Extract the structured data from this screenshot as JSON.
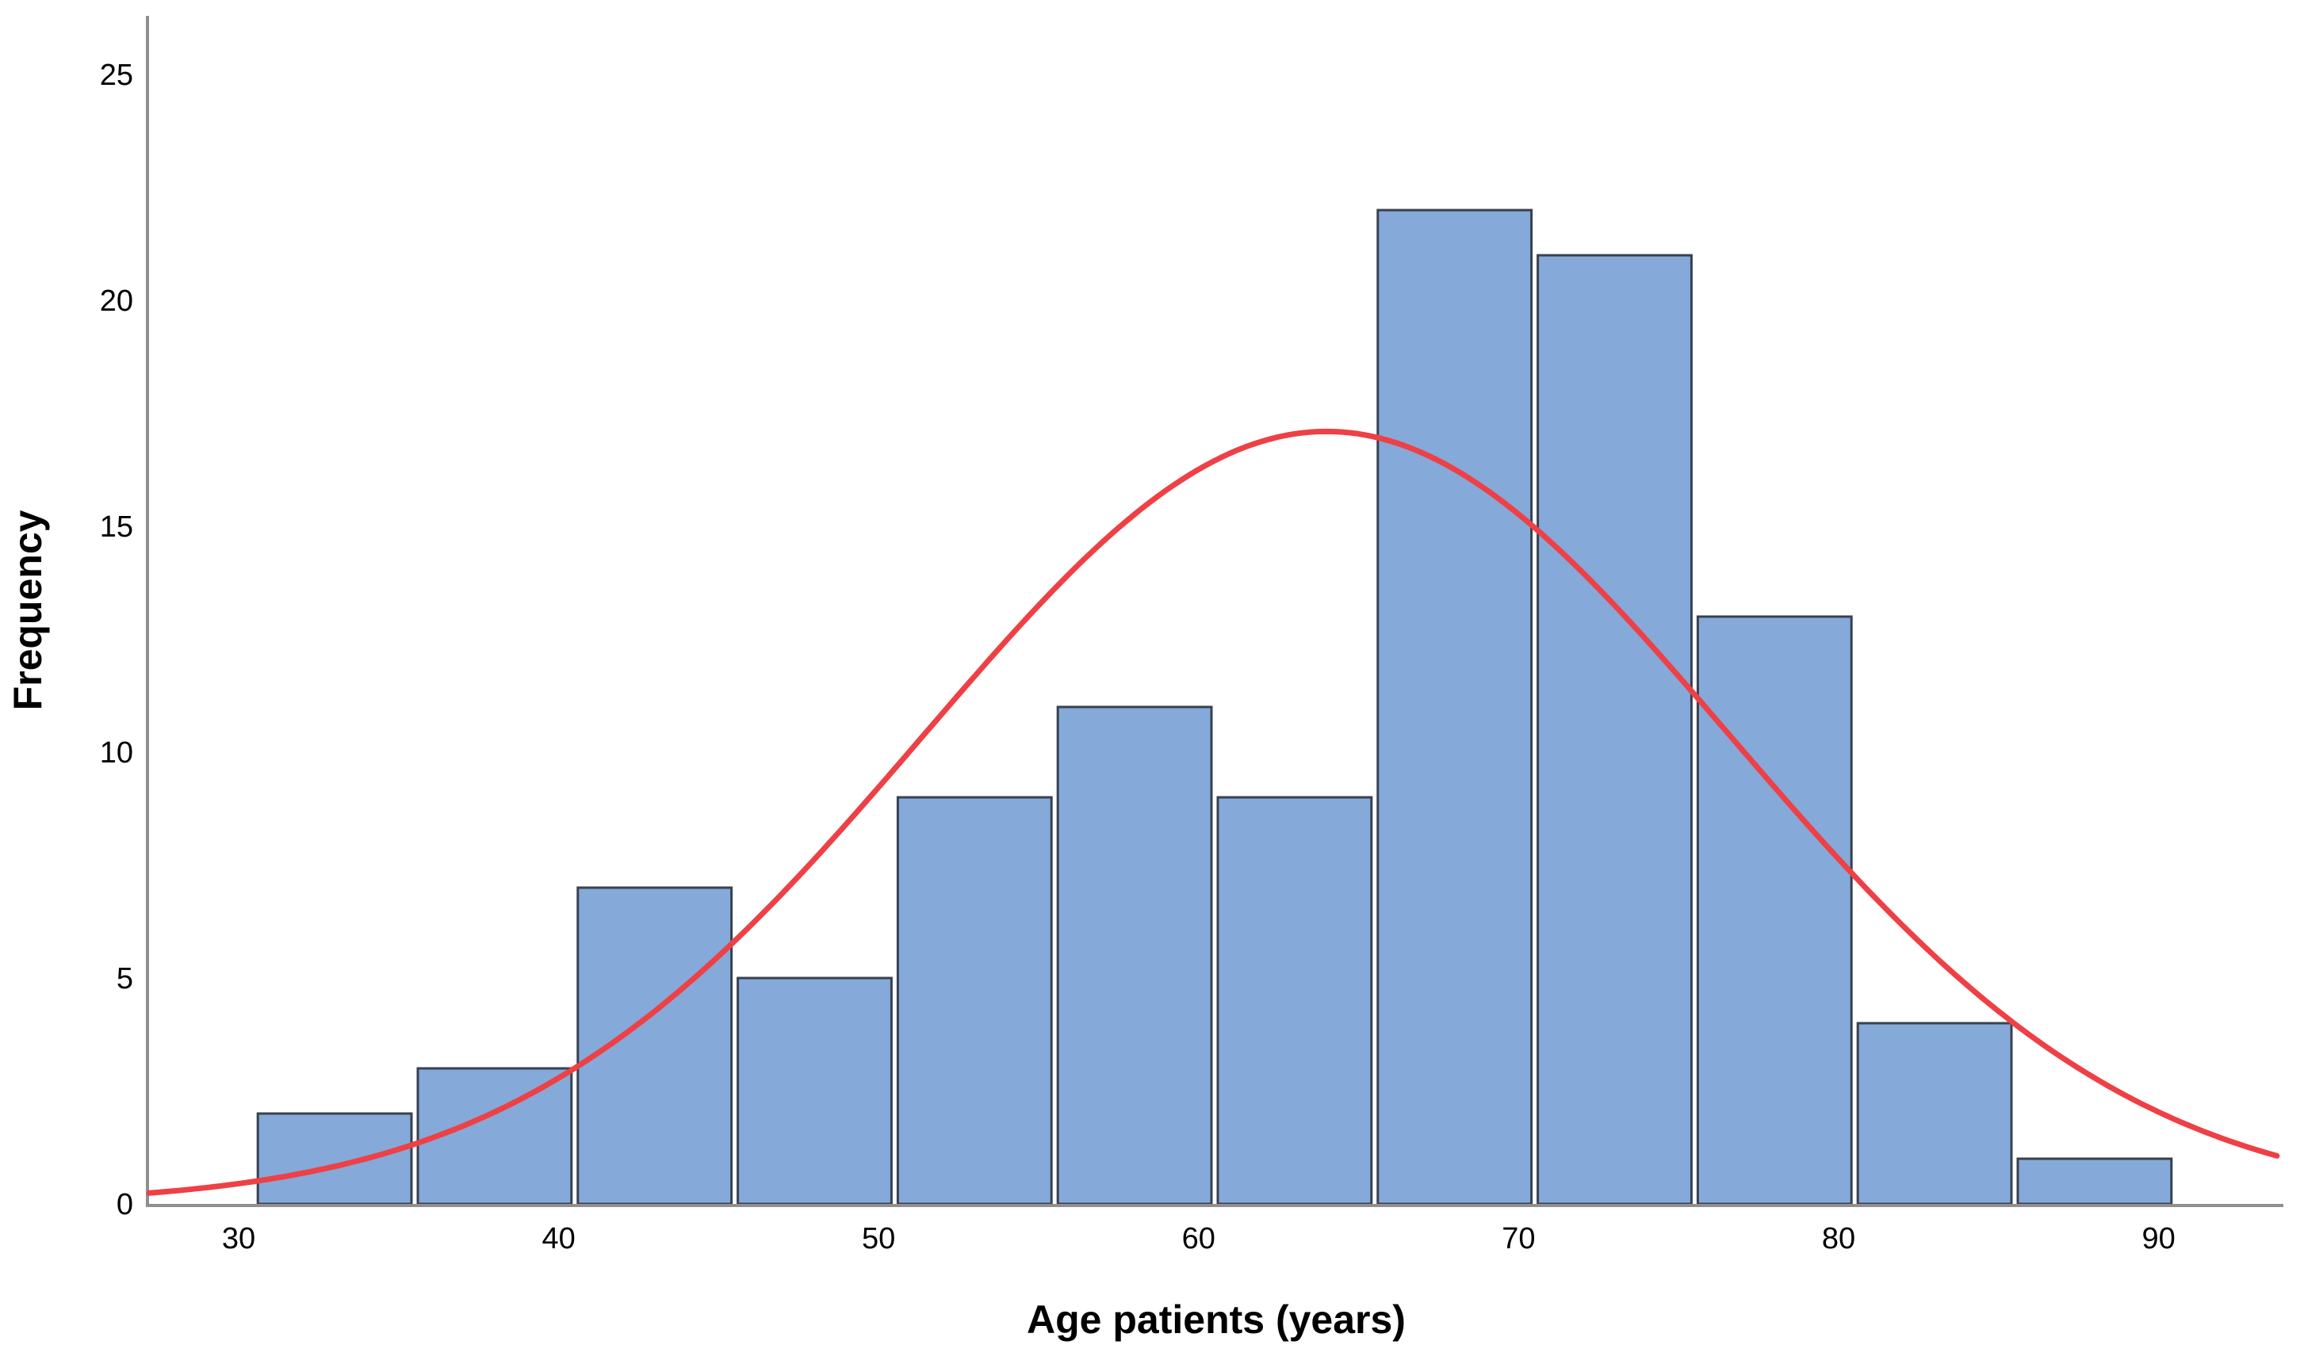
{
  "chart_data": {
    "type": "bar",
    "subtype": "histogram-with-normal-curve",
    "title": "",
    "xlabel": "Age patients (years)",
    "ylabel": "Frequency",
    "x_tick_labels": [
      "30",
      "40",
      "50",
      "60",
      "70",
      "80",
      "90"
    ],
    "x_tick_values": [
      30,
      40,
      50,
      60,
      70,
      80,
      90
    ],
    "y_tick_labels": [
      "0",
      "5",
      "10",
      "15",
      "20",
      "25"
    ],
    "y_tick_values": [
      0,
      5,
      10,
      15,
      20,
      25
    ],
    "xlim": [
      27.2,
      93.9
    ],
    "ylim": [
      0,
      26.3
    ],
    "grid": false,
    "legend_position": "none",
    "bins": {
      "start": 30.5,
      "width": 5,
      "edges": [
        30.5,
        35.5,
        40.5,
        45.5,
        50.5,
        55.5,
        60.5,
        65.5,
        70.5,
        75.5,
        80.5,
        85.5,
        90.5
      ],
      "frequencies": [
        2,
        3,
        7,
        5,
        9,
        11,
        9,
        22,
        21,
        13,
        4,
        1
      ]
    },
    "normal_curve": {
      "mean": 64,
      "sd": 12.6,
      "peak_height": 17.1,
      "n_total": 107
    },
    "colors": {
      "bar_fill": "#85a9d8",
      "bar_border": "#39414e",
      "curve": "#ee4045",
      "axis_line": "#8f8f8f",
      "text": "#000000",
      "background": "#ffffff"
    }
  }
}
